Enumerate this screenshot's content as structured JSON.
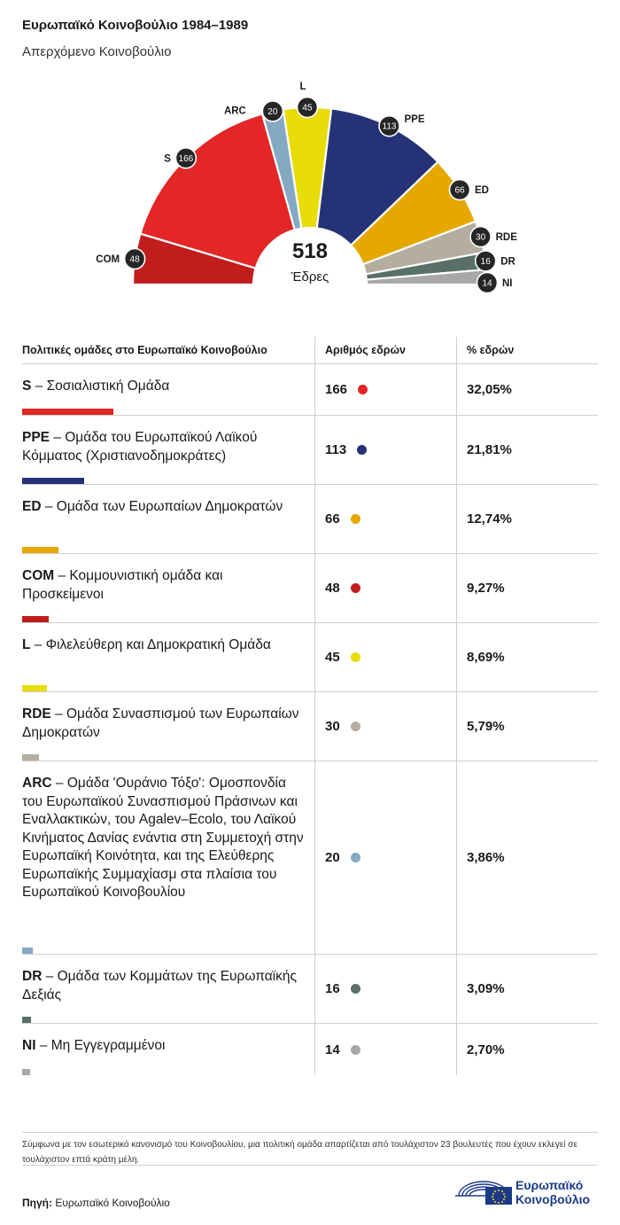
{
  "title": "Ευρωπαϊκό Κοινοβούλιο 1984–1989",
  "subtitle": "Απερχόμενο Κοινοβούλιο",
  "center": {
    "total": "518",
    "label": "Έδρες"
  },
  "table": {
    "headers": [
      "Πολιτικές ομάδες στο Ευρωπαϊκό Κοινοβούλιο",
      "Αριθμός εδρών",
      "% εδρών"
    ]
  },
  "chart_data": {
    "type": "pie",
    "variant": "semicircle-hemicycle",
    "total": 518,
    "groups": [
      {
        "abbr": "COM",
        "name": "Κομμουνιστική ομάδα και Προσκείμενοι",
        "seats": 48,
        "pct": "9,27%",
        "color": "#c11d1d"
      },
      {
        "abbr": "S",
        "name": "Σοσιαλιστική Ομάδα",
        "seats": 166,
        "pct": "32,05%",
        "color": "#e32626"
      },
      {
        "abbr": "ARC",
        "name": "Ομάδα 'Ουράνιο Τόξο': Ομοσπονδία του Ευρωπαϊκού Συνασπισμού Πράσινων και Εναλλακτικών, του Agalev–Ecolo, του Λαϊκού Κινήματος Δανίας ενάντια στη Συμμετοχή στην Ευρωπαϊκή Κοινότητα, και της Ελεύθερης Ευρωπαϊκής Συμμαχίασμ στα πλαίσια του Ευρωπαϊκού Κοινοβουλίου",
        "seats": 20,
        "pct": "3,86%",
        "color": "#85a9c2"
      },
      {
        "abbr": "L",
        "name": "Φιλελεύθερη και Δημοκρατική Ομάδα",
        "seats": 45,
        "pct": "8,69%",
        "color": "#e8dc0a"
      },
      {
        "abbr": "PPE",
        "name": "Ομάδα του Ευρωπαϊκού Λαϊκού Κόμματος (Χριστιανοδημοκράτες)",
        "seats": 113,
        "pct": "21,81%",
        "color": "#253376"
      },
      {
        "abbr": "ED",
        "name": "Ομάδα των Ευρωπαίων Δημοκρατών",
        "seats": 66,
        "pct": "12,74%",
        "color": "#e5a800"
      },
      {
        "abbr": "RDE",
        "name": "Ομάδα Συνασπισμού των Ευρωπαίων Δημοκρατών",
        "seats": 30,
        "pct": "5,79%",
        "color": "#b5ad9f"
      },
      {
        "abbr": "DR",
        "name": "Ομάδα των Κομμάτων της Ευρωπαϊκής Δεξιάς",
        "seats": 16,
        "pct": "3,09%",
        "color": "#587066"
      },
      {
        "abbr": "NI",
        "name": "Μη Εγγεγραμμένοι",
        "seats": 14,
        "pct": "2,70%",
        "color": "#a8a8a8"
      }
    ],
    "table_order": [
      "S",
      "PPE",
      "ED",
      "COM",
      "L",
      "RDE",
      "ARC",
      "DR",
      "NI"
    ]
  },
  "footnote": "Σύμφωνα με τον εσωτερικό κανονισμό του Κοινοβουλίου, μια πολιτική ομάδα απαρτίζεται από τουλάχιστον 23 βουλευτές που έχουν εκλεγεί σε τουλάχιστον επτά κράτη μέλη.",
  "source": {
    "label": "Πηγή:",
    "value": "Ευρωπαϊκό Κοινοβούλιο"
  },
  "logo": {
    "line1": "Ευρωπαϊκό",
    "line2": "Κοινοβούλιο"
  }
}
